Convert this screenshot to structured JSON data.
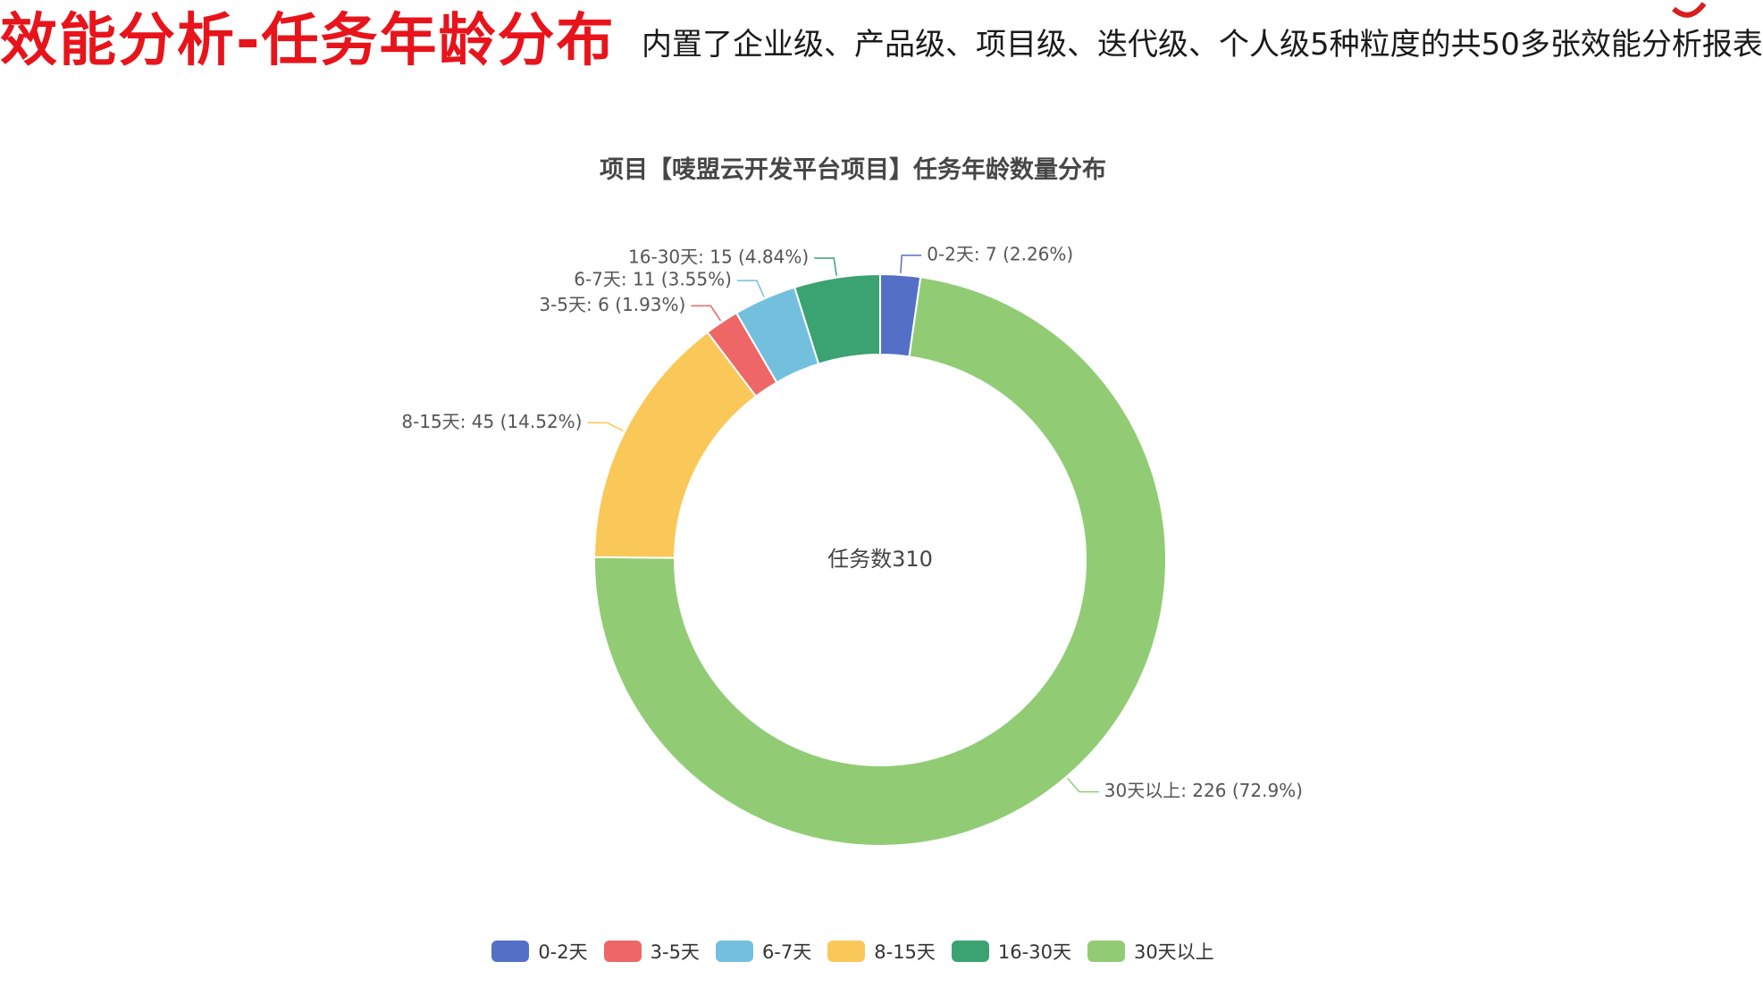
{
  "header": {
    "title": "效能分析-任务年龄分布",
    "subtitle": "内置了企业级、产品级、项目级、迭代级、个人级5种粒度的共50多张效能分析报表"
  },
  "chart_data": {
    "type": "pie",
    "donut": true,
    "title": "项目【唛盟云开发平台项目】任务年龄数量分布",
    "center_label": "任务数310",
    "legend_position": "bottom",
    "slices": [
      {
        "name": "0-2天",
        "value": 7,
        "percent": "2.26%",
        "color": "#5470c6",
        "label": "0-2天: 7  (2.26%)"
      },
      {
        "name": "30天以上",
        "value": 226,
        "percent": "72.9%",
        "color": "#91cc75",
        "label": "30天以上: 226  (72.9%)"
      },
      {
        "name": "8-15天",
        "value": 45,
        "percent": "14.52%",
        "color": "#fac858",
        "label": "8-15天: 45  (14.52%)"
      },
      {
        "name": "3-5天",
        "value": 6,
        "percent": "1.93%",
        "color": "#ee6666",
        "label": "3-5天: 6  (1.93%)"
      },
      {
        "name": "6-7天",
        "value": 11,
        "percent": "3.55%",
        "color": "#73c0de",
        "label": "6-7天: 11  (3.55%)"
      },
      {
        "name": "16-30天",
        "value": 15,
        "percent": "4.84%",
        "color": "#3ba272",
        "label": "16-30天: 15  (4.84%)"
      }
    ],
    "legend": [
      {
        "name": "0-2天",
        "color": "#5470c6"
      },
      {
        "name": "3-5天",
        "color": "#ee6666"
      },
      {
        "name": "6-7天",
        "color": "#73c0de"
      },
      {
        "name": "8-15天",
        "color": "#fac858"
      },
      {
        "name": "16-30天",
        "color": "#3ba272"
      },
      {
        "name": "30天以上",
        "color": "#91cc75"
      }
    ]
  }
}
